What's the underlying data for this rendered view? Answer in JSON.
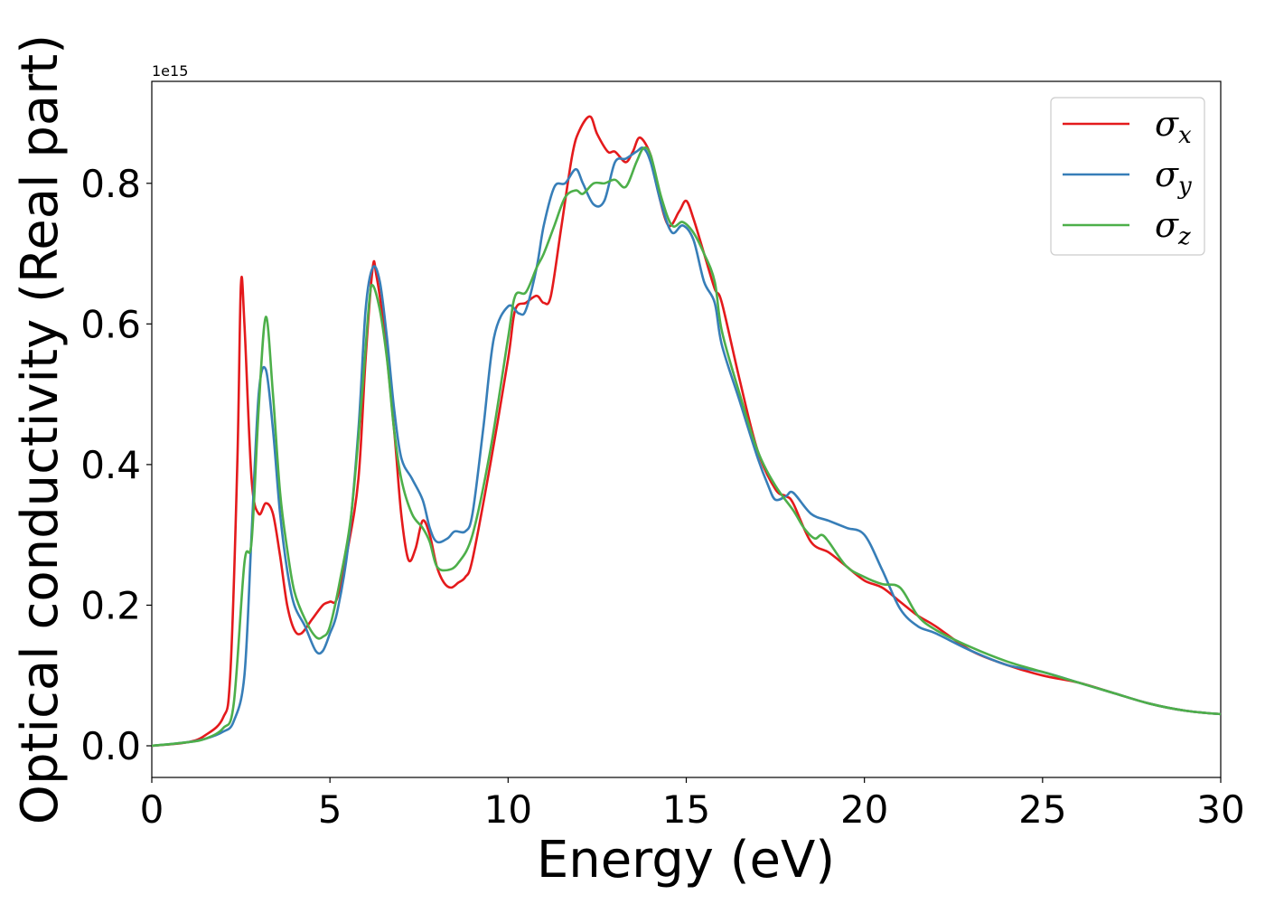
{
  "chart_data": {
    "type": "line",
    "xlabel": "Energy (eV)",
    "ylabel": "Optical conductivity (Real part)",
    "y_offset_label": "1e15",
    "xlim": [
      0,
      30
    ],
    "ylim": [
      -0.045,
      0.945
    ],
    "xticks": [
      0,
      5,
      10,
      15,
      20,
      25,
      30
    ],
    "xtick_labels": [
      "0",
      "5",
      "10",
      "15",
      "20",
      "25",
      "30"
    ],
    "yticks": [
      0.0,
      0.2,
      0.4,
      0.6,
      0.8
    ],
    "ytick_labels": [
      "0.0",
      "0.2",
      "0.4",
      "0.6",
      "0.8"
    ],
    "grid": false,
    "legend_position": "top-right",
    "series": [
      {
        "name": "σx",
        "legend_base": "σ",
        "legend_sub": "x",
        "color": "#e41a1c",
        "x": [
          0,
          1,
          1.5,
          2,
          2.2,
          2.4,
          2.5,
          2.6,
          2.8,
          3.0,
          3.2,
          3.4,
          3.6,
          3.8,
          4.0,
          4.2,
          4.5,
          4.8,
          5.0,
          5.2,
          5.5,
          5.8,
          6.0,
          6.2,
          6.3,
          6.5,
          6.8,
          7.0,
          7.2,
          7.4,
          7.6,
          7.8,
          8.0,
          8.2,
          8.4,
          8.6,
          8.8,
          9.0,
          9.5,
          10.0,
          10.2,
          10.5,
          10.8,
          11.0,
          11.2,
          11.5,
          11.8,
          12.0,
          12.3,
          12.5,
          12.8,
          13.0,
          13.3,
          13.5,
          13.7,
          14.0,
          14.2,
          14.5,
          14.8,
          15.0,
          15.2,
          15.5,
          15.8,
          16.0,
          16.5,
          17.0,
          17.5,
          17.8,
          18.0,
          18.5,
          19.0,
          19.5,
          20.0,
          20.5,
          21.0,
          21.5,
          22.0,
          23.0,
          24.0,
          25.0,
          26.0,
          27.0,
          28.0,
          29.0,
          30.0
        ],
        "y": [
          0.0,
          0.005,
          0.015,
          0.04,
          0.1,
          0.4,
          0.655,
          0.6,
          0.38,
          0.33,
          0.345,
          0.33,
          0.27,
          0.2,
          0.165,
          0.16,
          0.18,
          0.2,
          0.205,
          0.21,
          0.28,
          0.38,
          0.55,
          0.68,
          0.67,
          0.6,
          0.45,
          0.33,
          0.265,
          0.28,
          0.32,
          0.3,
          0.255,
          0.232,
          0.225,
          0.232,
          0.24,
          0.265,
          0.4,
          0.55,
          0.62,
          0.63,
          0.64,
          0.63,
          0.64,
          0.74,
          0.84,
          0.875,
          0.895,
          0.87,
          0.845,
          0.845,
          0.83,
          0.845,
          0.865,
          0.84,
          0.79,
          0.74,
          0.76,
          0.775,
          0.75,
          0.7,
          0.65,
          0.63,
          0.52,
          0.42,
          0.365,
          0.355,
          0.345,
          0.29,
          0.275,
          0.255,
          0.235,
          0.225,
          0.205,
          0.185,
          0.17,
          0.135,
          0.115,
          0.1,
          0.09,
          0.075,
          0.06,
          0.05,
          0.045
        ]
      },
      {
        "name": "σy",
        "legend_base": "σ",
        "legend_sub": "y",
        "color": "#377eb8",
        "x": [
          0,
          1,
          1.5,
          2,
          2.3,
          2.6,
          2.8,
          3.0,
          3.2,
          3.4,
          3.6,
          3.8,
          4.0,
          4.3,
          4.6,
          4.8,
          5.0,
          5.2,
          5.5,
          5.8,
          6.0,
          6.2,
          6.4,
          6.6,
          6.8,
          7.0,
          7.3,
          7.6,
          7.8,
          8.0,
          8.3,
          8.5,
          8.8,
          9.0,
          9.3,
          9.6,
          10.0,
          10.3,
          10.5,
          10.8,
          11.0,
          11.3,
          11.6,
          11.9,
          12.1,
          12.4,
          12.7,
          13.0,
          13.3,
          13.6,
          13.8,
          14.0,
          14.3,
          14.6,
          14.9,
          15.2,
          15.5,
          15.8,
          16.0,
          16.5,
          17.0,
          17.3,
          17.5,
          17.8,
          18.0,
          18.5,
          19.0,
          19.5,
          20.0,
          20.5,
          21.0,
          21.5,
          22.0,
          23.0,
          24.0,
          25.0,
          26.0,
          27.0,
          28.0,
          29.0,
          30.0
        ],
        "y": [
          0.0,
          0.005,
          0.01,
          0.02,
          0.035,
          0.1,
          0.3,
          0.5,
          0.535,
          0.45,
          0.33,
          0.25,
          0.2,
          0.17,
          0.135,
          0.135,
          0.16,
          0.19,
          0.28,
          0.45,
          0.62,
          0.68,
          0.66,
          0.58,
          0.48,
          0.41,
          0.38,
          0.35,
          0.31,
          0.29,
          0.295,
          0.305,
          0.305,
          0.33,
          0.45,
          0.58,
          0.625,
          0.615,
          0.62,
          0.68,
          0.74,
          0.795,
          0.8,
          0.82,
          0.8,
          0.77,
          0.775,
          0.83,
          0.835,
          0.845,
          0.85,
          0.83,
          0.77,
          0.73,
          0.74,
          0.72,
          0.66,
          0.63,
          0.57,
          0.49,
          0.41,
          0.37,
          0.35,
          0.355,
          0.36,
          0.33,
          0.32,
          0.31,
          0.3,
          0.25,
          0.195,
          0.17,
          0.16,
          0.135,
          0.115,
          0.105,
          0.09,
          0.075,
          0.06,
          0.05,
          0.045
        ]
      },
      {
        "name": "σz",
        "legend_base": "σ",
        "legend_sub": "z",
        "color": "#4daf4a",
        "x": [
          0,
          1,
          1.5,
          2,
          2.3,
          2.6,
          2.8,
          3.0,
          3.2,
          3.4,
          3.6,
          3.8,
          4.0,
          4.3,
          4.6,
          4.8,
          5.0,
          5.3,
          5.6,
          5.9,
          6.1,
          6.2,
          6.4,
          6.6,
          6.8,
          7.0,
          7.3,
          7.6,
          7.8,
          8.0,
          8.3,
          8.6,
          9.0,
          9.5,
          10.0,
          10.2,
          10.5,
          10.8,
          11.0,
          11.3,
          11.6,
          11.9,
          12.1,
          12.4,
          12.7,
          13.0,
          13.3,
          13.6,
          13.8,
          14.0,
          14.3,
          14.6,
          14.9,
          15.2,
          15.5,
          15.8,
          16.0,
          16.5,
          17.0,
          17.5,
          18.0,
          18.3,
          18.6,
          18.8,
          19.0,
          19.5,
          20.0,
          20.5,
          21.0,
          21.5,
          22.0,
          23.0,
          24.0,
          25.0,
          26.0,
          27.0,
          28.0,
          29.0,
          30.0
        ],
        "y": [
          0.0,
          0.005,
          0.01,
          0.025,
          0.06,
          0.26,
          0.29,
          0.48,
          0.61,
          0.5,
          0.36,
          0.28,
          0.22,
          0.18,
          0.155,
          0.155,
          0.17,
          0.24,
          0.33,
          0.5,
          0.63,
          0.655,
          0.62,
          0.55,
          0.45,
          0.38,
          0.33,
          0.31,
          0.29,
          0.255,
          0.25,
          0.26,
          0.3,
          0.42,
          0.58,
          0.64,
          0.645,
          0.68,
          0.7,
          0.74,
          0.78,
          0.79,
          0.785,
          0.8,
          0.8,
          0.805,
          0.795,
          0.83,
          0.85,
          0.84,
          0.78,
          0.74,
          0.745,
          0.73,
          0.7,
          0.66,
          0.59,
          0.5,
          0.42,
          0.37,
          0.335,
          0.31,
          0.295,
          0.3,
          0.29,
          0.255,
          0.24,
          0.23,
          0.225,
          0.185,
          0.165,
          0.14,
          0.12,
          0.105,
          0.09,
          0.075,
          0.06,
          0.05,
          0.045
        ]
      }
    ]
  }
}
